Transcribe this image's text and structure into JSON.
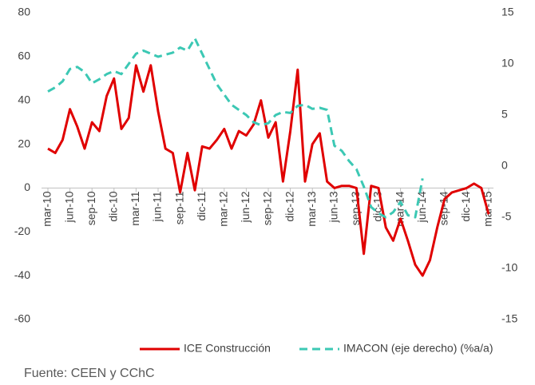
{
  "chart_data": {
    "type": "line",
    "categories": [
      "mar-10",
      null,
      null,
      "jun-10",
      null,
      null,
      "sep-10",
      null,
      null,
      "dic-10",
      null,
      null,
      "mar-11",
      null,
      null,
      "jun-11",
      null,
      null,
      "sep-11",
      null,
      null,
      "dic-11",
      null,
      null,
      "mar-12",
      null,
      null,
      "jun-12",
      null,
      null,
      "sep-12",
      null,
      null,
      "dic-12",
      null,
      null,
      "mar-13",
      null,
      null,
      "jun-13",
      null,
      null,
      "sep-13",
      null,
      null,
      "dic-13",
      null,
      null,
      "mar-14",
      null,
      null,
      "jun-14",
      null,
      null,
      "sep-14",
      null,
      null,
      "dic-14",
      null,
      null,
      "mar-15"
    ],
    "series": [
      {
        "name": "ICE Construcción",
        "color": "#e00000",
        "values": [
          18,
          16,
          22,
          36,
          28,
          18,
          30,
          26,
          42,
          50,
          27,
          32,
          56,
          44,
          56,
          35,
          18,
          16,
          -2,
          16,
          -1,
          19,
          18,
          22,
          27,
          18,
          26,
          24,
          29,
          40,
          23,
          30,
          3,
          26,
          54,
          3,
          20,
          25,
          3,
          0,
          1,
          1,
          0,
          -30,
          1,
          0,
          -18,
          -24,
          -14,
          -24,
          -35,
          -40,
          -33,
          -18,
          -5,
          -2,
          -1,
          0,
          2,
          0,
          -12
        ]
      },
      {
        "name": "IMACON (eje derecho) (%a/a)",
        "color": "#3cc8b4",
        "axis": "y2",
        "dash": true,
        "values": [
          7.3,
          7.7,
          8.3,
          9.5,
          9.7,
          9.2,
          8.1,
          8.5,
          9.0,
          9.3,
          9.0,
          10.0,
          11.0,
          11.3,
          11.0,
          10.7,
          10.9,
          11.1,
          11.6,
          11.3,
          12.5,
          11.0,
          9.5,
          8.0,
          7.0,
          6.0,
          5.5,
          5.0,
          4.3,
          4.0,
          4.2,
          5.0,
          5.3,
          5.2,
          5.9,
          6.0,
          5.6,
          5.7,
          5.5,
          2.0,
          1.5,
          0.5,
          -0.3,
          -2,
          -4,
          -4.6,
          -5,
          -4.5,
          -3.5,
          -4.8,
          -5,
          -1.2,
          null,
          null,
          null,
          null,
          null,
          null,
          null,
          null,
          null
        ]
      }
    ],
    "ylim": [
      -60,
      80
    ],
    "yticks": [
      80,
      60,
      40,
      20,
      0,
      -20,
      -40,
      -60
    ],
    "y2lim": [
      -15,
      15
    ],
    "y2ticks": [
      15,
      10,
      5,
      0,
      -5,
      -10,
      -15
    ],
    "grid": false,
    "legend": "bottom",
    "source": "Fuente: CEEN y CChC"
  }
}
